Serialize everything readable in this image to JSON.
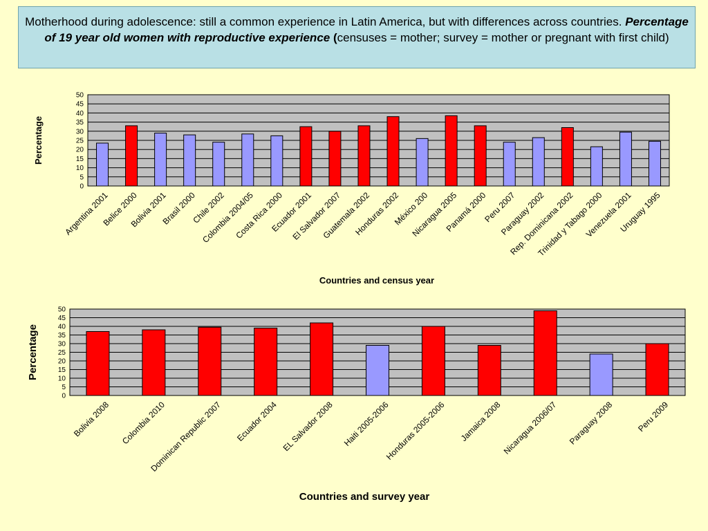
{
  "title": {
    "part1": "Motherhood during adolescence: still  a common experience in Latin America, but with differences across countries.",
    "emphasis": "Percentage of 19 year old women with reproductive experience",
    "paren_open": "(",
    "part2": "censuses = mother; survey = mother or pregnant with first child)"
  },
  "colors": {
    "red": "#ff0000",
    "blue": "#9999ff",
    "plot_bg": "#c0c0c0",
    "page_bg": "#ffffcc"
  },
  "chart_data": [
    {
      "type": "bar",
      "ylabel": "Percentage",
      "xlabel": "Countries and census year",
      "ylim": [
        0,
        50
      ],
      "yticks": [
        0,
        5,
        10,
        15,
        20,
        25,
        30,
        35,
        40,
        45,
        50
      ],
      "grid": true,
      "categories": [
        "Argentina 2001",
        "Belice 2000",
        "Bolivia 2001",
        "Brasil 2000",
        "Chile 2002",
        "Colombia 2004/05",
        "Costa Rica 2000",
        "Ecuador 2001",
        "El Salvador  2007",
        "Guatemala 2002",
        "Honduras 2002",
        "México 200",
        "Nicaragua 2005",
        "Panamá 2000",
        "Peru 2007",
        "Paraguay 2002",
        "Rep. Dominicana 2002",
        "Trinidad y Tabago 2000",
        "Venezuela 2001",
        "Uruguay 1995"
      ],
      "values": [
        23.5,
        33,
        29,
        28,
        24,
        28.5,
        27.5,
        32.5,
        30,
        33,
        38,
        26,
        38.5,
        33,
        24,
        26.5,
        32,
        21.5,
        29.5,
        24.5
      ],
      "bar_colors": [
        "blue",
        "red",
        "blue",
        "blue",
        "blue",
        "blue",
        "blue",
        "red",
        "red",
        "red",
        "red",
        "blue",
        "red",
        "red",
        "blue",
        "blue",
        "red",
        "blue",
        "blue",
        "blue"
      ]
    },
    {
      "type": "bar",
      "ylabel": "Percentage",
      "xlabel": "Countries and survey year",
      "ylim": [
        0,
        50
      ],
      "yticks": [
        0,
        5,
        10,
        15,
        20,
        25,
        30,
        35,
        40,
        45,
        50
      ],
      "grid": true,
      "categories": [
        "Bolivia 2008",
        "Colombia 2010",
        "Dominican Republic 2007",
        "Ecuador 2004",
        "EL Salvador 2008",
        "Haiti 2005-2006",
        "Honduras 2005-2006",
        "Jamaica 2008",
        "Nicaragua 2006/07",
        "Paraguay 2008",
        "Peru 2009"
      ],
      "values": [
        37,
        38,
        39.5,
        39,
        42,
        29,
        40,
        29,
        49,
        24,
        30
      ],
      "bar_colors": [
        "red",
        "red",
        "red",
        "red",
        "red",
        "blue",
        "red",
        "red",
        "red",
        "blue",
        "red"
      ]
    }
  ]
}
